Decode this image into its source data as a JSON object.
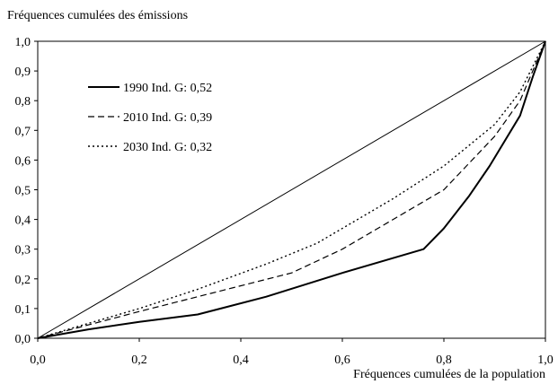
{
  "chart_data": {
    "type": "line",
    "title": "",
    "ylabel": "Fréquences cumulées des émissions",
    "xlabel": "Fréquences cumulées de la population",
    "xlim": [
      0,
      1
    ],
    "ylim": [
      0,
      1
    ],
    "x_ticks": [
      0,
      0.2,
      0.4,
      0.6,
      0.8,
      1.0
    ],
    "y_ticks": [
      0,
      0.1,
      0.2,
      0.3,
      0.4,
      0.5,
      0.6,
      0.7,
      0.8,
      0.9,
      1.0
    ],
    "x_tick_labels": [
      "0,0",
      "0,2",
      "0,4",
      "0,6",
      "0,8",
      "1,0"
    ],
    "y_tick_labels": [
      "0,0",
      "0,1",
      "0,2",
      "0,3",
      "0,4",
      "0,5",
      "0,6",
      "0,7",
      "0,8",
      "0,9",
      "1,0"
    ],
    "grid": false,
    "legend_position": "top-left",
    "equality_line": {
      "x": [
        0,
        1
      ],
      "y": [
        0,
        1
      ],
      "style": "solid-thin"
    },
    "series": [
      {
        "name": "1990  Ind. G: 0,52",
        "style": "solid",
        "x": [
          0,
          0.1,
          0.2,
          0.315,
          0.45,
          0.6,
          0.76,
          0.8,
          0.85,
          0.89,
          0.95,
          0.975,
          1.0
        ],
        "y": [
          0,
          0.03,
          0.055,
          0.08,
          0.14,
          0.22,
          0.3,
          0.37,
          0.48,
          0.58,
          0.75,
          0.88,
          1.0
        ]
      },
      {
        "name": "2010  Ind. G: 0,39",
        "style": "dashed",
        "x": [
          0,
          0.1,
          0.2,
          0.315,
          0.5,
          0.6,
          0.7,
          0.8,
          0.9,
          0.95,
          1.0
        ],
        "y": [
          0,
          0.045,
          0.09,
          0.14,
          0.22,
          0.3,
          0.4,
          0.5,
          0.68,
          0.8,
          1.0
        ]
      },
      {
        "name": "2030  Ind. G: 0,32",
        "style": "dotted",
        "x": [
          0,
          0.1,
          0.2,
          0.315,
          0.45,
          0.55,
          0.7,
          0.8,
          0.9,
          0.95,
          1.0
        ],
        "y": [
          0,
          0.05,
          0.1,
          0.165,
          0.25,
          0.32,
          0.47,
          0.58,
          0.72,
          0.83,
          1.0
        ]
      }
    ]
  }
}
